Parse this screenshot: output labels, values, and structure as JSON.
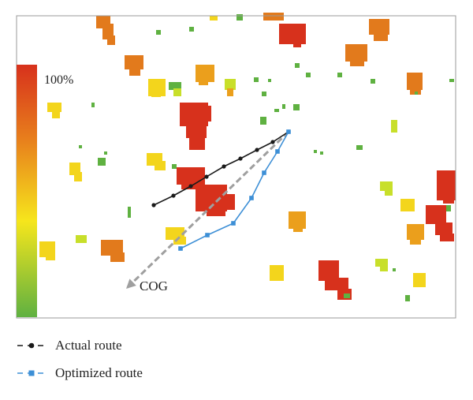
{
  "colorbar": {
    "max_label": "100%",
    "colors": [
      "#d7311c",
      "#e8801c",
      "#f6e61c",
      "#5fb141"
    ]
  },
  "map": {
    "cog_label": "COG",
    "colors": {
      "frame": "#9a9a9a",
      "actual": "#1a1a1a",
      "optimized": "#3d8fd6",
      "cog": "#9f9f9f"
    },
    "actual_route": [
      [
        195,
        260
      ],
      [
        220,
        248
      ],
      [
        242,
        236
      ],
      [
        262,
        224
      ],
      [
        284,
        211
      ],
      [
        305,
        201
      ],
      [
        326,
        190
      ],
      [
        346,
        180
      ],
      [
        366,
        167
      ]
    ],
    "optimized_route": [
      [
        229,
        315
      ],
      [
        263,
        298
      ],
      [
        296,
        283
      ],
      [
        319,
        251
      ],
      [
        335,
        219
      ],
      [
        352,
        192
      ],
      [
        366,
        167
      ]
    ],
    "cog_arrow": {
      "from": [
        366,
        167
      ],
      "to": [
        160,
        366
      ]
    }
  },
  "legend": {
    "actual_label": "Actual route",
    "optimized_label": "Optimized route"
  }
}
